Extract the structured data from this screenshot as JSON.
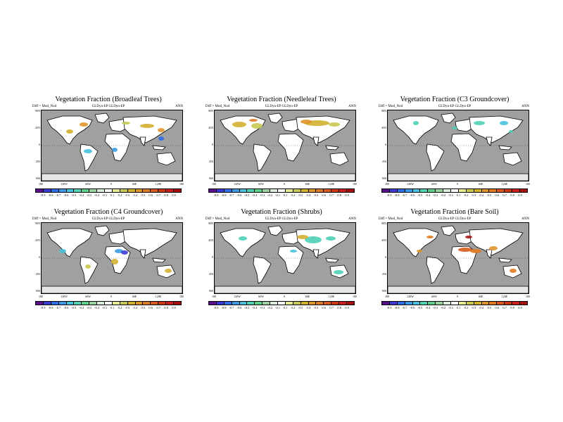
{
  "figure": {
    "units_label": "Diff = Mod_Nod",
    "cases_label": "GLDyn-EP   GLDyn-EP",
    "season_label": "ANN"
  },
  "axes": {
    "lat_ticks": [
      "90N",
      "45N",
      "0",
      "45S",
      "90S"
    ],
    "lon_ticks": [
      "180",
      "120W",
      "60W",
      "0",
      "60E",
      "120E",
      "180"
    ]
  },
  "colorbar": {
    "labels": [
      "-0.9",
      "-0.8",
      "-0.7",
      "-0.6",
      "-0.5",
      "-0.4",
      "-0.3",
      "-0.2",
      "-0.1",
      "0.1",
      "0.2",
      "0.3",
      "0.4",
      "0.5",
      "0.6",
      "0.7",
      "0.8",
      "0.9"
    ],
    "colors": [
      "#5a0f8e",
      "#3b3bd1",
      "#2f6fe8",
      "#3a9be6",
      "#46c2dc",
      "#4fd0b7",
      "#5ad08a",
      "#9ad2a0",
      "#d8ecd8",
      "#ffffff",
      "#e9ea8f",
      "#c8c850",
      "#d4b030",
      "#e0952c",
      "#e07a22",
      "#d85b1c",
      "#cc3a14",
      "#c8201a",
      "#a81010"
    ]
  },
  "panels": [
    {
      "title": "Vegetation Fraction (Broadleaf Trees)"
    },
    {
      "title": "Vegetation Fraction (Needleleaf Trees)"
    },
    {
      "title": "Vegetation Fraction (C3 Groundcover)"
    },
    {
      "title": "Vegetation Fraction (C4 Groundcover)"
    },
    {
      "title": "Vegetation Fraction (Shrubs)"
    },
    {
      "title": "Vegetation Fraction (Bare Soil)"
    }
  ],
  "colors": {
    "ocean": "#a0a0a0",
    "land_no_change": "#ffffff",
    "ice": "#e6e6e6"
  }
}
